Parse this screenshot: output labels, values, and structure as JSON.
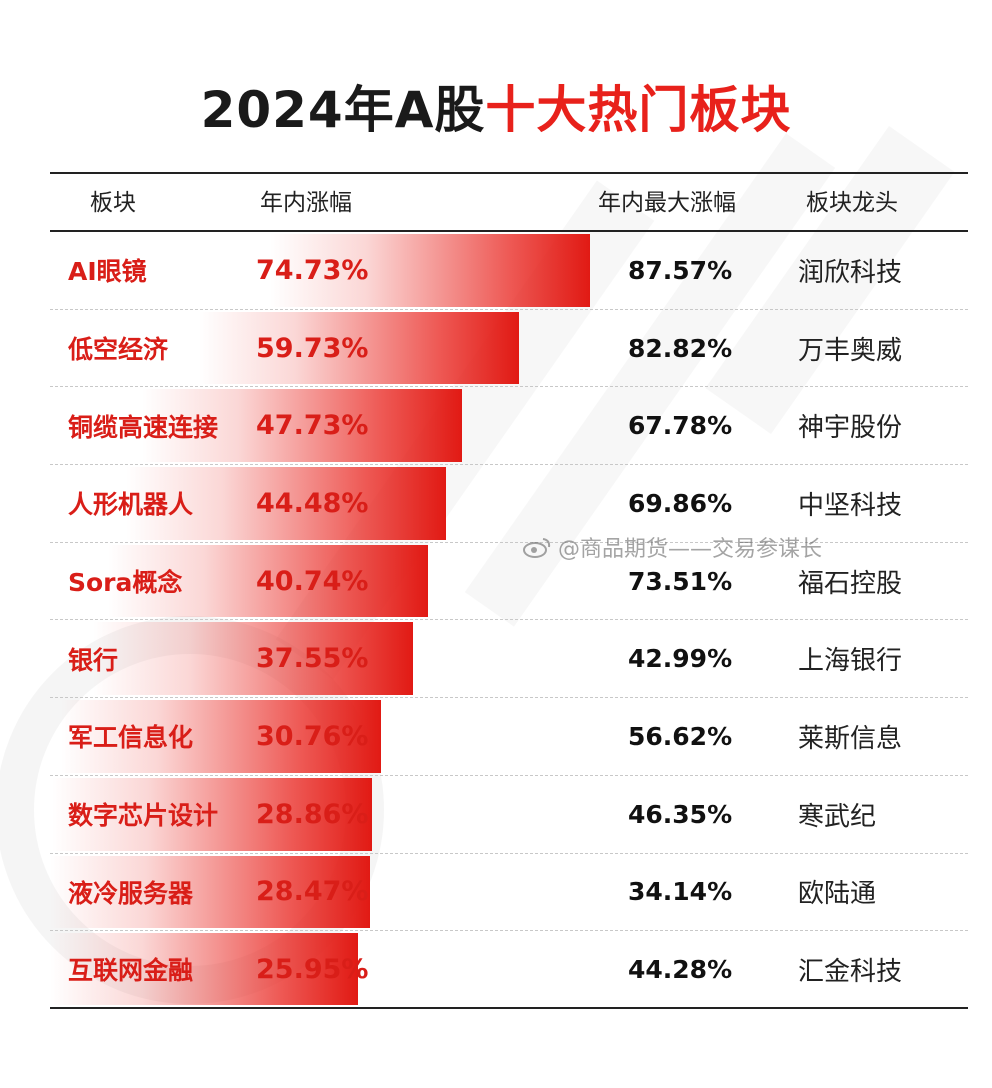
{
  "title": {
    "prefix": "2024年A股",
    "highlight": "十大热门板块"
  },
  "columns": {
    "sector": "板块",
    "ytd_gain": "年内涨幅",
    "max_gain": "年内最大涨幅",
    "leader": "板块龙头"
  },
  "watermark": {
    "text": "@商品期货——交易参谋长"
  },
  "colors": {
    "accent": "#e8211b",
    "text": "#1a1a1a"
  },
  "chart_data": {
    "type": "table",
    "title": "2024年A股十大热门板块",
    "columns": [
      "板块",
      "年内涨幅",
      "年内最大涨幅",
      "板块龙头"
    ],
    "rows": [
      {
        "sector": "AI眼镜",
        "ytd_gain": 74.73,
        "ytd_label": "74.73%",
        "max_gain": 87.57,
        "max_label": "87.57%",
        "leader": "润欣科技"
      },
      {
        "sector": "低空经济",
        "ytd_gain": 59.73,
        "ytd_label": "59.73%",
        "max_gain": 82.82,
        "max_label": "82.82%",
        "leader": "万丰奥威"
      },
      {
        "sector": "铜缆高速连接",
        "ytd_gain": 47.73,
        "ytd_label": "47.73%",
        "max_gain": 67.78,
        "max_label": "67.78%",
        "leader": "神宇股份"
      },
      {
        "sector": "人形机器人",
        "ytd_gain": 44.48,
        "ytd_label": "44.48%",
        "max_gain": 69.86,
        "max_label": "69.86%",
        "leader": "中坚科技"
      },
      {
        "sector": "Sora概念",
        "ytd_gain": 40.74,
        "ytd_label": "40.74%",
        "max_gain": 73.51,
        "max_label": "73.51%",
        "leader": "福石控股"
      },
      {
        "sector": "银行",
        "ytd_gain": 37.55,
        "ytd_label": "37.55%",
        "max_gain": 42.99,
        "max_label": "42.99%",
        "leader": "上海银行"
      },
      {
        "sector": "军工信息化",
        "ytd_gain": 30.76,
        "ytd_label": "30.76%",
        "max_gain": 56.62,
        "max_label": "56.62%",
        "leader": "莱斯信息"
      },
      {
        "sector": "数字芯片设计",
        "ytd_gain": 28.86,
        "ytd_label": "28.86%",
        "max_gain": 46.35,
        "max_label": "46.35%",
        "leader": "寒武纪"
      },
      {
        "sector": "液冷服务器",
        "ytd_gain": 28.47,
        "ytd_label": "28.47%",
        "max_gain": 34.14,
        "max_label": "34.14%",
        "leader": "欧陆通"
      },
      {
        "sector": "互联网金融",
        "ytd_gain": 25.95,
        "ytd_label": "25.95%",
        "max_gain": 44.28,
        "max_label": "44.28%",
        "leader": "汇金科技"
      }
    ]
  }
}
